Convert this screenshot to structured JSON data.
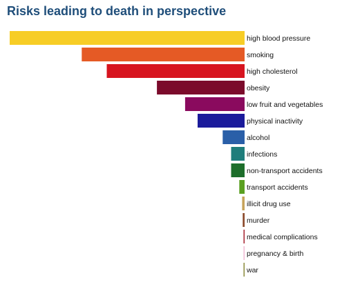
{
  "chart_data": {
    "type": "bar",
    "orientation": "horizontal",
    "title": "Risks leading to death in perspective",
    "categories": [
      "high blood pressure",
      "smoking",
      "high cholesterol",
      "obesity",
      "low fruit and vegetables",
      "physical inactivity",
      "alcohol",
      "infections",
      "non-transport accidents",
      "transport accidents",
      "illicit drug use",
      "murder",
      "medical complications",
      "pregnancy & birth",
      "war"
    ],
    "values": [
      7.5,
      5.2,
      4.4,
      2.8,
      1.9,
      1.5,
      0.7,
      0.43,
      0.43,
      0.17,
      0.08,
      0.06,
      0.03,
      0.02,
      0.01
    ],
    "colors": [
      "#f7cd26",
      "#e55a25",
      "#d7141f",
      "#7b0b2b",
      "#8a0a5e",
      "#1b1b9b",
      "#2a5fa8",
      "#1f7d7b",
      "#1d6e2b",
      "#5aa021",
      "#c7a35b",
      "#8b4a2b",
      "#a51f2c",
      "#f1b9d3",
      "#8a8a3a"
    ],
    "xlim": [
      0,
      7.5
    ],
    "grid": false,
    "legend": "none",
    "axis_labels_shown": false
  }
}
